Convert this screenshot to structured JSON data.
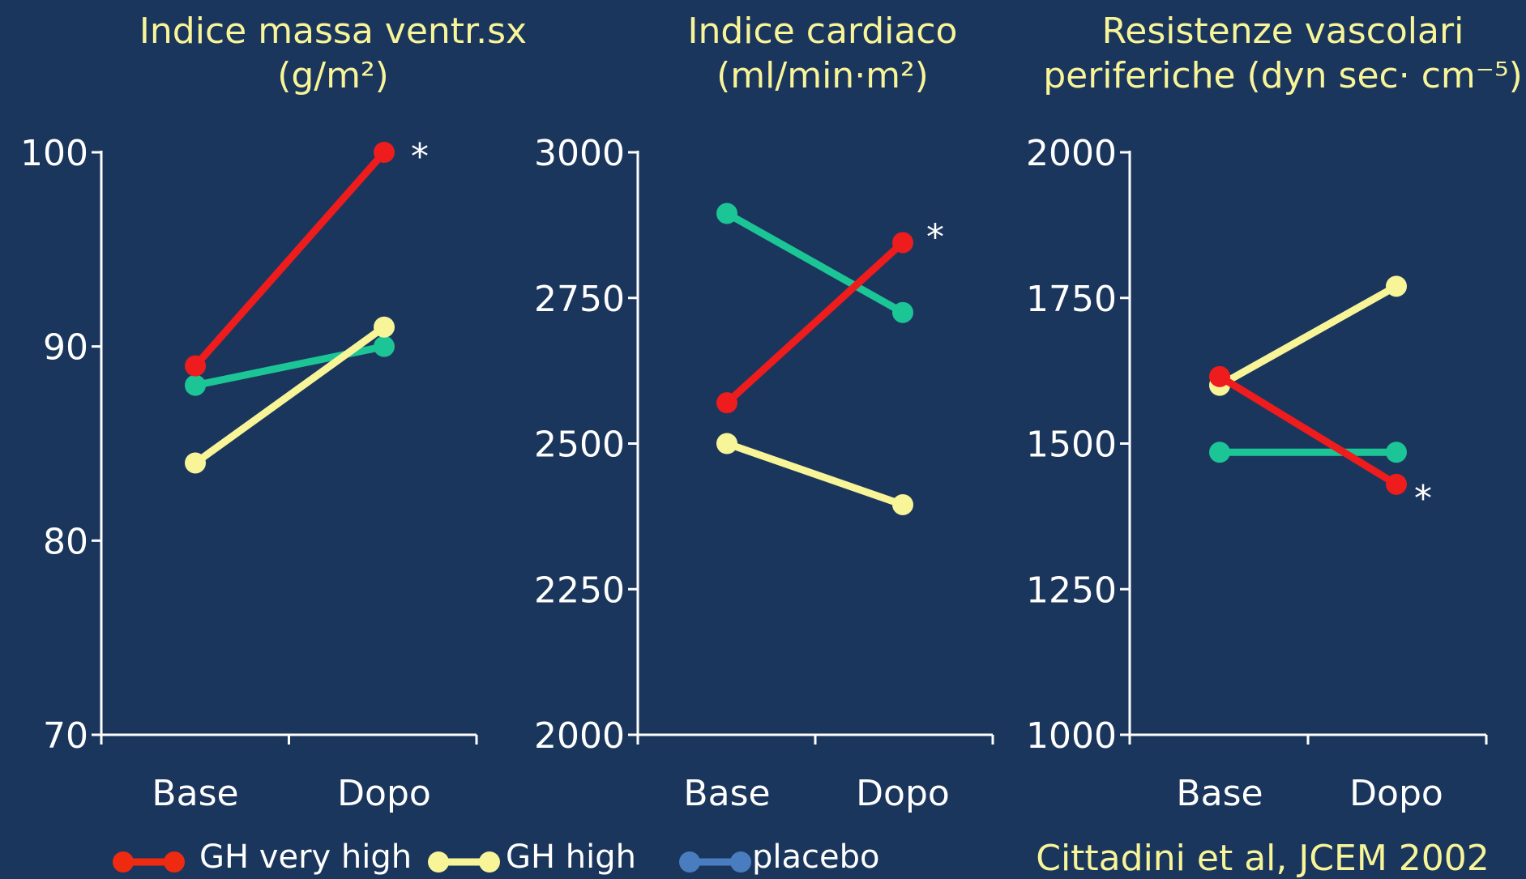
{
  "chart_data": [
    {
      "type": "line",
      "title": [
        "Indice massa ventr.sx",
        "(g/m²)"
      ],
      "categories": [
        "Base",
        "Dopo"
      ],
      "series": [
        {
          "name": "GH very high",
          "color": "#ee1c1c",
          "legend_color": "#ee2a10",
          "values": [
            89,
            100
          ]
        },
        {
          "name": "GH high",
          "color": "#f8f598",
          "legend_color": "#f8f598",
          "values": [
            84,
            91
          ]
        },
        {
          "name": "placebo",
          "color": "#1cc596",
          "legend_color": "#4a7cc0",
          "values": [
            88,
            90
          ]
        }
      ],
      "ylim": [
        70,
        100
      ],
      "yticks": [
        70,
        80,
        90,
        100
      ],
      "annotations": [
        "*"
      ]
    },
    {
      "type": "line",
      "title": [
        "Indice cardiaco",
        "(ml/min·m²)"
      ],
      "categories": [
        "Base",
        "Dopo"
      ],
      "series": [
        {
          "name": "GH very high",
          "color": "#ee1c1c",
          "values": [
            2570,
            2845
          ]
        },
        {
          "name": "GH high",
          "color": "#f8f598",
          "values": [
            2500,
            2395
          ]
        },
        {
          "name": "placebo",
          "color": "#1cc596",
          "values": [
            2895,
            2725
          ]
        }
      ],
      "ylim": [
        2000,
        3000
      ],
      "yticks": [
        2000,
        2250,
        2500,
        2750,
        3000
      ],
      "annotations": [
        "*"
      ]
    },
    {
      "type": "line",
      "title": [
        "Resistenze vascolari",
        "periferiche (dyn sec· cm⁻⁵)"
      ],
      "categories": [
        "Base",
        "Dopo"
      ],
      "series": [
        {
          "name": "GH very high",
          "color": "#ee1c1c",
          "values": [
            1615,
            1430
          ]
        },
        {
          "name": "GH high",
          "color": "#f8f598",
          "values": [
            1600,
            1770
          ]
        },
        {
          "name": "placebo",
          "color": "#1cc596",
          "values": [
            1485,
            1485
          ]
        }
      ],
      "ylim": [
        1000,
        2000
      ],
      "yticks": [
        1000,
        1250,
        1500,
        1750,
        2000
      ],
      "annotations": [
        "*"
      ]
    }
  ],
  "citation": "Cittadini et al, JCEM 2002"
}
